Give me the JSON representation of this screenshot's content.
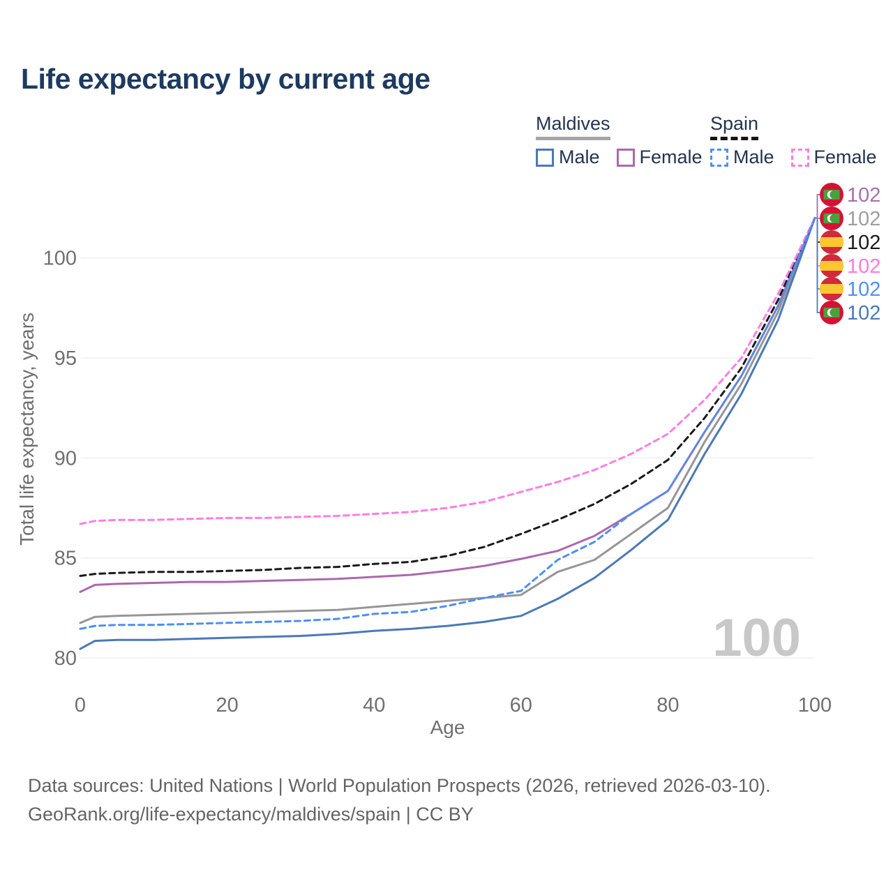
{
  "title": "Life expectancy by current age",
  "legend": {
    "groups": [
      {
        "name": "Maldives",
        "underline": "solid",
        "underline_color": "#a5a5a5",
        "items": [
          {
            "label": "Male",
            "color": "#4a79b8",
            "dash": false
          },
          {
            "label": "Female",
            "color": "#ac68ad",
            "dash": false
          }
        ]
      },
      {
        "name": "Spain",
        "underline": "dashed",
        "underline_color": "#141414",
        "items": [
          {
            "label": "Male",
            "color": "#4d8ff2",
            "dash": true
          },
          {
            "label": "Female",
            "color": "#ff7de2",
            "dash": true
          }
        ]
      }
    ]
  },
  "chart_data": {
    "type": "line",
    "title": "Life expectancy by current age",
    "xlabel": "Age",
    "ylabel": "Total life expectancy, years",
    "xlim": [
      0,
      100
    ],
    "ylim": [
      79.5,
      103
    ],
    "xticks": [
      0,
      20,
      40,
      60,
      80,
      100
    ],
    "yticks": [
      80,
      85,
      90,
      95,
      100
    ],
    "grid": true,
    "legend_position": "top-right",
    "watermark": "100",
    "x": [
      0,
      2,
      5,
      10,
      15,
      20,
      25,
      30,
      35,
      40,
      45,
      50,
      55,
      60,
      65,
      70,
      75,
      80,
      85,
      90,
      95,
      100
    ],
    "series": [
      {
        "id": "maldives-all",
        "name": "Maldives",
        "color": "#969696",
        "label_color": "#9e9e9e",
        "dash": false,
        "flag": "maldives",
        "row": 1,
        "end_value": "102",
        "values": [
          81.75,
          82.05,
          82.1,
          82.15,
          82.2,
          82.25,
          82.3,
          82.35,
          82.4,
          82.55,
          82.7,
          82.85,
          83.0,
          83.15,
          84.3,
          84.9,
          86.2,
          87.5,
          90.8,
          93.7,
          97.3,
          102
        ]
      },
      {
        "id": "maldives-female",
        "name": "Maldives Female",
        "color": "#ac68ad",
        "label_color": "#a76fad",
        "dash": false,
        "flag": "maldives",
        "row": 0,
        "end_value": "102",
        "values": [
          83.3,
          83.65,
          83.7,
          83.75,
          83.8,
          83.8,
          83.85,
          83.9,
          83.95,
          84.05,
          84.15,
          84.35,
          84.6,
          84.95,
          85.35,
          86.1,
          87.2,
          88.35,
          91.3,
          94.1,
          97.6,
          102
        ]
      },
      {
        "id": "maldives-male",
        "name": "Maldives Male",
        "color": "#4a79b8",
        "label_color": "#4a79b8",
        "dash": false,
        "flag": "maldives",
        "row": 5,
        "end_value": "102",
        "values": [
          80.45,
          80.85,
          80.9,
          80.9,
          80.95,
          81.0,
          81.05,
          81.1,
          81.2,
          81.35,
          81.45,
          81.6,
          81.8,
          82.1,
          82.95,
          84.0,
          85.4,
          86.9,
          90.2,
          93.2,
          96.9,
          102
        ]
      },
      {
        "id": "spain-all",
        "name": "Spain",
        "color": "#1a1a1a",
        "label_color": "#1a1a1a",
        "dash": true,
        "flag": "spain",
        "row": 2,
        "end_value": "102",
        "values": [
          84.1,
          84.2,
          84.25,
          84.3,
          84.3,
          84.35,
          84.4,
          84.5,
          84.55,
          84.7,
          84.8,
          85.1,
          85.55,
          86.2,
          86.9,
          87.7,
          88.7,
          89.9,
          92.0,
          94.5,
          97.9,
          102
        ]
      },
      {
        "id": "spain-female",
        "name": "Spain Female",
        "color": "#ff7de2",
        "label_color": "#ff79e1",
        "dash": true,
        "flag": "spain",
        "row": 3,
        "end_value": "102",
        "values": [
          86.7,
          86.85,
          86.9,
          86.9,
          86.95,
          87.0,
          87.0,
          87.05,
          87.1,
          87.2,
          87.3,
          87.5,
          87.8,
          88.3,
          88.8,
          89.4,
          90.2,
          91.2,
          92.9,
          95.0,
          98.2,
          102
        ]
      },
      {
        "id": "spain-male",
        "name": "Spain Male",
        "color": "#4d8ff2",
        "label_color": "#4e90f5",
        "dash": true,
        "flag": "spain",
        "row": 4,
        "end_value": "102",
        "values": [
          81.45,
          81.6,
          81.65,
          81.65,
          81.7,
          81.75,
          81.8,
          81.85,
          81.95,
          82.2,
          82.3,
          82.6,
          83.0,
          83.35,
          84.9,
          85.8,
          87.2,
          88.35,
          91.3,
          94.1,
          97.6,
          102
        ]
      }
    ],
    "flag_colors": {
      "maldives_red": "#d21334",
      "maldives_green": "#4aa03c",
      "spain_red": "#d02a3c",
      "spain_yellow": "#fdc733"
    }
  },
  "footer": {
    "line1": "Data sources: United Nations | World Population Prospects (2026, retrieved 2026-03-10).",
    "line2": "GeoRank.org/life-expectancy/maldives/spain | CC BY"
  }
}
